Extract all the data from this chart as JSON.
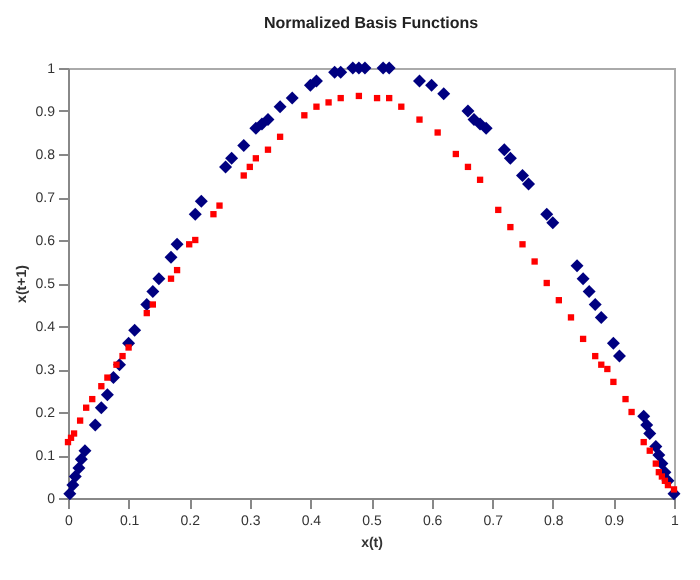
{
  "chart_data": {
    "type": "scatter",
    "title": "Normalized Basis Functions",
    "xlabel": "x(t)",
    "ylabel": "x(t+1)",
    "xlim": [
      0,
      1
    ],
    "ylim": [
      0,
      1
    ],
    "xticks": [
      0,
      0.1,
      0.2,
      0.3,
      0.4,
      0.5,
      0.6,
      0.7,
      0.8,
      0.9,
      1
    ],
    "yticks": [
      0,
      0.1,
      0.2,
      0.3,
      0.4,
      0.5,
      0.6,
      0.7,
      0.8,
      0.9,
      1
    ],
    "series": [
      {
        "color": "#000080",
        "marker": "diamond",
        "x": [
          0.003,
          0.008,
          0.012,
          0.018,
          0.022,
          0.028,
          0.045,
          0.055,
          0.065,
          0.075,
          0.085,
          0.1,
          0.11,
          0.13,
          0.14,
          0.15,
          0.17,
          0.18,
          0.21,
          0.22,
          0.26,
          0.27,
          0.29,
          0.31,
          0.32,
          0.33,
          0.35,
          0.37,
          0.4,
          0.41,
          0.44,
          0.45,
          0.47,
          0.48,
          0.49,
          0.52,
          0.53,
          0.58,
          0.6,
          0.62,
          0.66,
          0.67,
          0.68,
          0.69,
          0.72,
          0.73,
          0.75,
          0.76,
          0.79,
          0.8,
          0.84,
          0.85,
          0.86,
          0.87,
          0.88,
          0.9,
          0.91,
          0.95,
          0.955,
          0.96,
          0.97,
          0.975,
          0.98,
          0.985,
          0.99,
          1.0
        ],
        "values": [
          0.01,
          0.03,
          0.05,
          0.07,
          0.09,
          0.11,
          0.17,
          0.21,
          0.24,
          0.28,
          0.31,
          0.36,
          0.39,
          0.45,
          0.48,
          0.51,
          0.56,
          0.59,
          0.66,
          0.69,
          0.77,
          0.79,
          0.82,
          0.86,
          0.87,
          0.88,
          0.91,
          0.93,
          0.96,
          0.97,
          0.99,
          0.99,
          1.0,
          1.0,
          1.0,
          1.0,
          1.0,
          0.97,
          0.96,
          0.94,
          0.9,
          0.88,
          0.87,
          0.86,
          0.81,
          0.79,
          0.75,
          0.73,
          0.66,
          0.64,
          0.54,
          0.51,
          0.48,
          0.45,
          0.42,
          0.36,
          0.33,
          0.19,
          0.17,
          0.15,
          0.12,
          0.1,
          0.08,
          0.06,
          0.04,
          0.01
        ]
      },
      {
        "color": "#ff0000",
        "marker": "square",
        "x": [
          0,
          0.005,
          0.01,
          0.02,
          0.03,
          0.04,
          0.055,
          0.065,
          0.08,
          0.09,
          0.1,
          0.13,
          0.14,
          0.17,
          0.18,
          0.2,
          0.21,
          0.24,
          0.25,
          0.29,
          0.3,
          0.31,
          0.33,
          0.35,
          0.39,
          0.41,
          0.43,
          0.45,
          0.48,
          0.51,
          0.53,
          0.55,
          0.58,
          0.61,
          0.64,
          0.66,
          0.68,
          0.71,
          0.73,
          0.75,
          0.77,
          0.79,
          0.81,
          0.83,
          0.85,
          0.87,
          0.88,
          0.89,
          0.9,
          0.92,
          0.93,
          0.95,
          0.96,
          0.97,
          0.975,
          0.98,
          0.985,
          0.99,
          1.0
        ],
        "values": [
          0.13,
          0.14,
          0.15,
          0.18,
          0.21,
          0.23,
          0.26,
          0.28,
          0.31,
          0.33,
          0.35,
          0.43,
          0.45,
          0.51,
          0.53,
          0.59,
          0.6,
          0.66,
          0.68,
          0.75,
          0.77,
          0.79,
          0.81,
          0.84,
          0.89,
          0.91,
          0.92,
          0.93,
          0.935,
          0.93,
          0.93,
          0.91,
          0.88,
          0.85,
          0.8,
          0.77,
          0.74,
          0.67,
          0.63,
          0.59,
          0.55,
          0.5,
          0.46,
          0.42,
          0.37,
          0.33,
          0.31,
          0.3,
          0.27,
          0.23,
          0.2,
          0.13,
          0.11,
          0.08,
          0.06,
          0.05,
          0.04,
          0.03,
          0.02
        ]
      }
    ]
  }
}
